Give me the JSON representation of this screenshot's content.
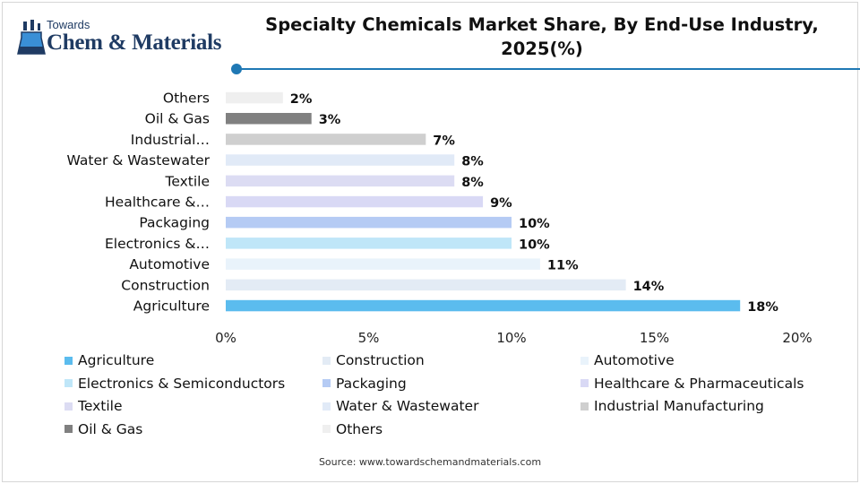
{
  "brand": {
    "top": "Towards",
    "main": "Chem & Materials",
    "accent": "#1f78b4"
  },
  "header": {
    "title_line1": "Specialty Chemicals Market Share, By End-Use Industry,",
    "title_line2": "2025(%)"
  },
  "chart_data": {
    "type": "bar",
    "orientation": "horizontal",
    "title": "Specialty Chemicals Market Share, By End-Use Industry, 2025(%)",
    "categories": [
      "Agriculture",
      "Construction",
      "Automotive",
      "Electronics &…",
      "Packaging",
      "Healthcare &…",
      "Textile",
      "Water & Wastewater",
      "Industrial…",
      "Oil & Gas",
      "Others"
    ],
    "values": [
      18,
      14,
      11,
      10,
      10,
      9,
      8,
      8,
      7,
      3,
      2
    ],
    "data_labels": [
      "18%",
      "14%",
      "11%",
      "10%",
      "10%",
      "9%",
      "8%",
      "8%",
      "7%",
      "3%",
      "2%"
    ],
    "colors": [
      "#5bbcee",
      "#e3ebf5",
      "#e9f3fb",
      "#bfe6f8",
      "#b5cbf4",
      "#d9d9f5",
      "#dcdcf3",
      "#e1eaf7",
      "#cfcfcf",
      "#808080",
      "#efefef"
    ],
    "xlim": [
      0,
      20
    ],
    "xticks": [
      "0%",
      "5%",
      "10%",
      "15%",
      "20%"
    ],
    "grid": false,
    "legend_position": "bottom",
    "legend": [
      "Agriculture",
      "Construction",
      "Automotive",
      "Electronics & Semiconductors",
      "Packaging",
      "Healthcare & Pharmaceuticals",
      "Textile",
      "Water & Wastewater",
      "Industrial Manufacturing",
      "Oil & Gas",
      "Others"
    ]
  },
  "footer": {
    "source": "Source: www.towardschemandmaterials.com"
  }
}
